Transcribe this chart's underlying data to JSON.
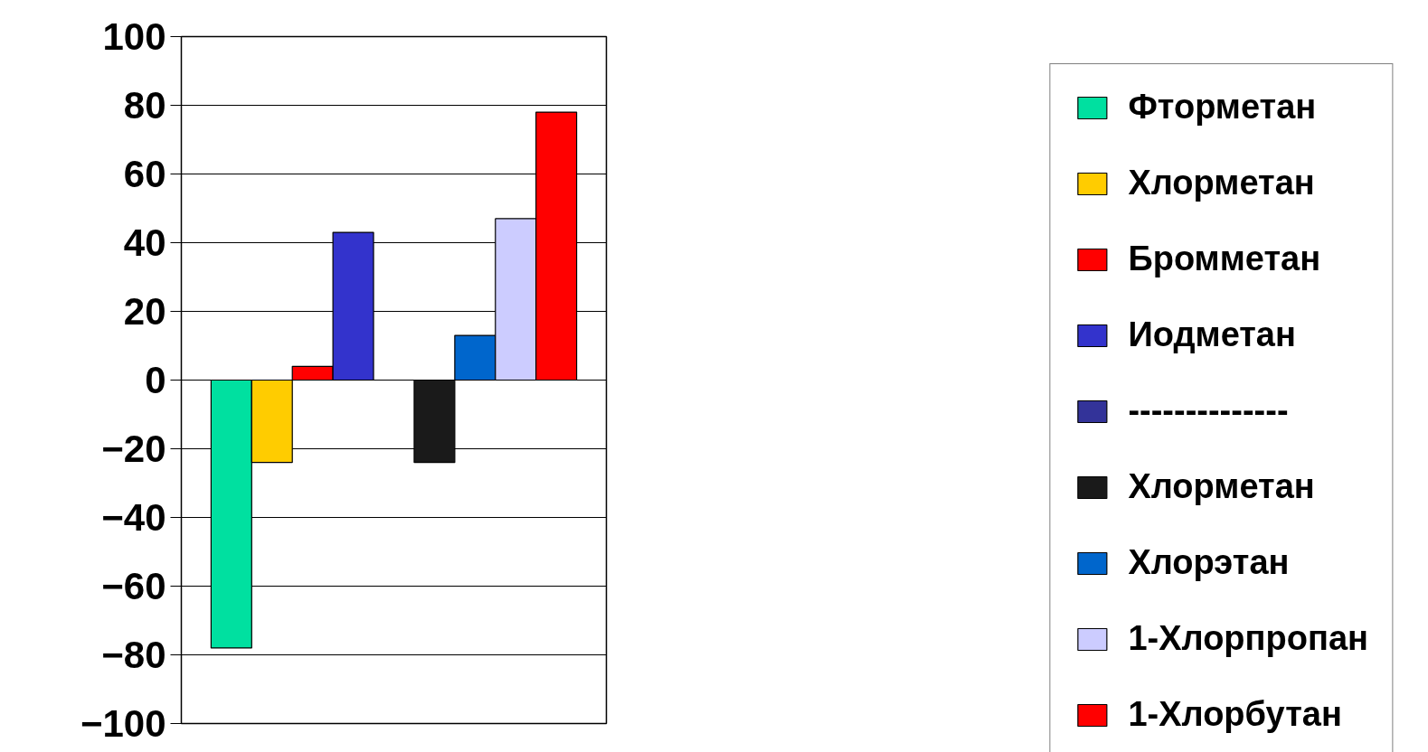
{
  "chart_data": {
    "type": "bar",
    "categories": [
      null
    ],
    "series": [
      {
        "name": "Фторметан",
        "color": "#00e0a0",
        "values": [
          -78
        ]
      },
      {
        "name": "Хлорметан",
        "color": "#ffcc00",
        "values": [
          -24
        ]
      },
      {
        "name": "Бромметан",
        "color": "#ff0000",
        "values": [
          4
        ]
      },
      {
        "name": "Иодметан",
        "color": "#3333cc",
        "values": [
          43
        ]
      },
      {
        "name": "--------------",
        "color": "#333399",
        "values": [
          null
        ]
      },
      {
        "name": "Хлорметан",
        "color": "#1a1a1a",
        "values": [
          -24
        ]
      },
      {
        "name": "Хлорэтан",
        "color": "#0066cc",
        "values": [
          13
        ]
      },
      {
        "name": "1-Хлорпропан",
        "color": "#ccccff",
        "values": [
          47
        ]
      },
      {
        "name": "1-Хлорбутан",
        "color": "#ff0000",
        "values": [
          78
        ]
      }
    ],
    "ylim": [
      -100,
      100
    ],
    "yticks": [
      -100,
      -80,
      -60,
      -40,
      -20,
      0,
      20,
      40,
      60,
      80,
      100
    ],
    "grid": "y",
    "legend": "right"
  }
}
